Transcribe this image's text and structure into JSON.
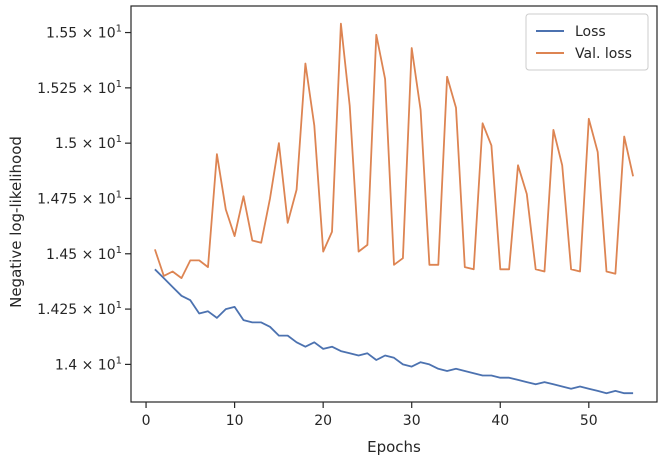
{
  "chart_data": {
    "type": "line",
    "title": "",
    "xlabel": "Epochs",
    "ylabel": "Negative log-likelihood",
    "xlim": [
      -1.7,
      57.7
    ],
    "ylim": [
      13.83,
      15.62
    ],
    "xticks": [
      0,
      10,
      20,
      30,
      40,
      50
    ],
    "xtick_labels": [
      "0",
      "10",
      "20",
      "30",
      "40",
      "50"
    ],
    "yticks": [
      14.0,
      14.25,
      14.5,
      14.75,
      15.0,
      15.25,
      15.5
    ],
    "ytick_mantissas": [
      "1.4",
      "1.425",
      "1.45",
      "1.475",
      "1.5",
      "1.525",
      "1.55"
    ],
    "ytick_base": "× 10",
    "ytick_exp": "1",
    "grid": false,
    "legend_position": "top-right",
    "x": [
      1,
      2,
      3,
      4,
      5,
      6,
      7,
      8,
      9,
      10,
      11,
      12,
      13,
      14,
      15,
      16,
      17,
      18,
      19,
      20,
      21,
      22,
      23,
      24,
      25,
      26,
      27,
      28,
      29,
      30,
      31,
      32,
      33,
      34,
      35,
      36,
      37,
      38,
      39,
      40,
      41,
      42,
      43,
      44,
      45,
      46,
      47,
      48,
      49,
      50,
      51,
      52,
      53,
      54,
      55
    ],
    "series": [
      {
        "name": "Loss",
        "color": "#4c72b0",
        "values": [
          14.43,
          14.39,
          14.35,
          14.31,
          14.29,
          14.23,
          14.24,
          14.21,
          14.25,
          14.26,
          14.2,
          14.19,
          14.19,
          14.17,
          14.13,
          14.13,
          14.1,
          14.08,
          14.1,
          14.07,
          14.08,
          14.06,
          14.05,
          14.04,
          14.05,
          14.02,
          14.04,
          14.03,
          14.0,
          13.99,
          14.01,
          14.0,
          13.98,
          13.97,
          13.98,
          13.97,
          13.96,
          13.95,
          13.95,
          13.94,
          13.94,
          13.93,
          13.92,
          13.91,
          13.92,
          13.91,
          13.9,
          13.89,
          13.9,
          13.89,
          13.88,
          13.87,
          13.88,
          13.87,
          13.87
        ]
      },
      {
        "name": "Val. loss",
        "color": "#dd8452",
        "values": [
          14.52,
          14.4,
          14.42,
          14.39,
          14.47,
          14.47,
          14.44,
          14.95,
          14.7,
          14.58,
          14.76,
          14.56,
          14.55,
          14.75,
          15.0,
          14.64,
          14.79,
          15.36,
          15.08,
          14.51,
          14.6,
          15.54,
          15.17,
          14.51,
          14.54,
          15.49,
          15.29,
          14.45,
          14.48,
          15.43,
          15.15,
          14.45,
          14.45,
          15.3,
          15.16,
          14.44,
          14.43,
          15.09,
          14.99,
          14.43,
          14.43,
          14.9,
          14.77,
          14.43,
          14.42,
          15.06,
          14.9,
          14.43,
          14.42,
          15.11,
          14.96,
          14.42,
          14.41,
          15.03,
          14.85
        ]
      }
    ]
  }
}
